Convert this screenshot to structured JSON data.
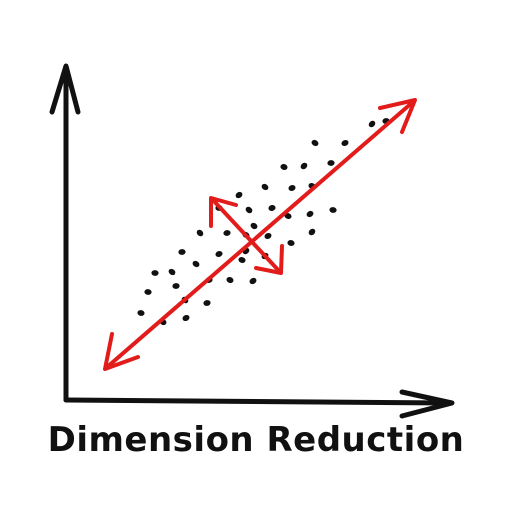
{
  "caption": "Dimension Reduction",
  "colors": {
    "ink": "#111111",
    "arrow": "#e21b1b",
    "background": "#ffffff"
  },
  "icons": {
    "axes": "axes-icon",
    "principal_direction": "double-arrow-icon",
    "secondary_direction": "double-arrow-icon"
  }
}
